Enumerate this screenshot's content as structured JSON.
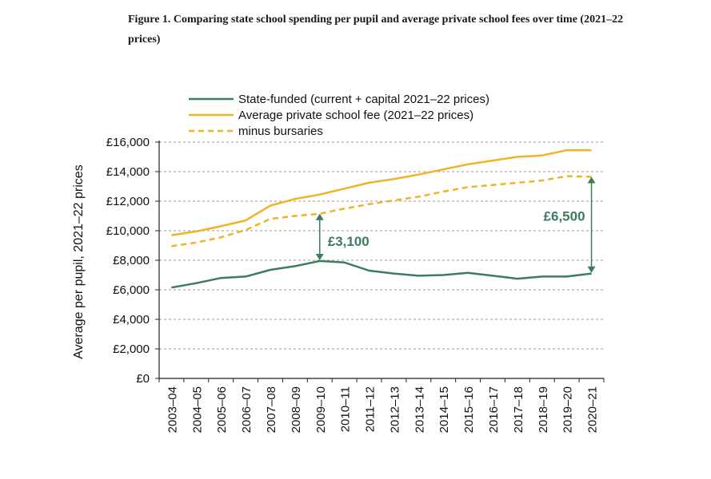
{
  "figure": {
    "title": "Figure 1. Comparing state school spending per pupil and average private school fees over time (2021–22 prices)"
  },
  "colors": {
    "state": "#3c7d5b",
    "private": "#f0b323",
    "grid": "#9a9a9a",
    "axis": "#222222"
  },
  "chart_data": {
    "type": "line",
    "ylabel": "Average per pupil, 2021–22 prices",
    "ylim": [
      0,
      16000
    ],
    "yticks": [
      0,
      2000,
      4000,
      6000,
      8000,
      10000,
      12000,
      14000,
      16000
    ],
    "ytick_labels": [
      "£0",
      "£2,000",
      "£4,000",
      "£6,000",
      "£8,000",
      "£10,000",
      "£12,000",
      "£14,000",
      "£16,000"
    ],
    "grid": true,
    "legend_position": "top",
    "categories": [
      "2003–04",
      "2004–05",
      "2005–06",
      "2006–07",
      "2007–08",
      "2008–09",
      "2009–10",
      "2010–11",
      "2011–12",
      "2012–13",
      "2013–14",
      "2014–15",
      "2015–16",
      "2016–17",
      "2017–18",
      "2018–19",
      "2019–20",
      "2020–21"
    ],
    "series": [
      {
        "name": "State-funded (current + capital 2021–22 prices)",
        "style": "solid",
        "color": "#3c7d5b",
        "values": [
          6150,
          6450,
          6800,
          6900,
          7350,
          7600,
          7950,
          7850,
          7300,
          7100,
          6950,
          7000,
          7150,
          6950,
          6750,
          6900,
          6900,
          7100
        ]
      },
      {
        "name": "Average private school fee (2021–22 prices)",
        "style": "solid",
        "color": "#f0b323",
        "values": [
          9700,
          9950,
          10300,
          10700,
          11700,
          12150,
          12450,
          12850,
          13250,
          13500,
          13800,
          14150,
          14500,
          14750,
          15000,
          15100,
          15450,
          15450
        ]
      },
      {
        "name": "minus bursaries",
        "style": "dashed",
        "color": "#f0b323",
        "values": [
          8950,
          9200,
          9550,
          10050,
          10800,
          11000,
          11150,
          11500,
          11800,
          12050,
          12300,
          12650,
          12950,
          13100,
          13250,
          13400,
          13700,
          13650
        ]
      }
    ],
    "annotations": [
      {
        "label": "£3,100",
        "category_index": 6,
        "from": 8000,
        "to": 11150
      },
      {
        "label": "£6,500",
        "category_index": 17,
        "from": 7150,
        "to": 13650
      }
    ]
  }
}
